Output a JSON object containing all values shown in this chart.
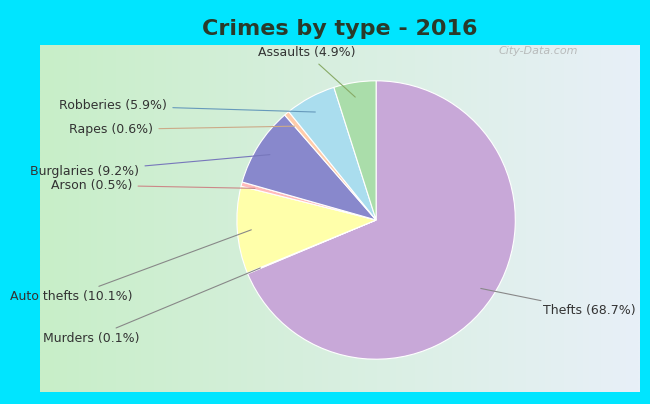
{
  "title": "Crimes by type - 2016",
  "labels": [
    "Thefts",
    "Murders",
    "Auto thefts",
    "Arson",
    "Burglaries",
    "Rapes",
    "Robberies",
    "Assaults"
  ],
  "values": [
    68.7,
    0.1,
    10.1,
    0.5,
    9.2,
    0.6,
    5.9,
    4.9
  ],
  "colors": [
    "#c8a8d8",
    "#d4c8b8",
    "#ffffaa",
    "#ffbbbb",
    "#8888cc",
    "#ffccaa",
    "#aaddee",
    "#aaddaa"
  ],
  "pct_labels": [
    "Thefts (68.7%)",
    "Murders (0.1%)",
    "Auto thefts (10.1%)",
    "Arson (0.5%)",
    "Burglaries (9.2%)",
    "Rapes (0.6%)",
    "Robberies (5.9%)",
    "Assaults (4.9%)"
  ],
  "background_top": "#00e5ff",
  "background_main_left": "#c8eec8",
  "background_main_right": "#e8f0f8",
  "title_fontsize": 16,
  "label_fontsize": 9,
  "watermark": "City-Data.com",
  "cyan_bar_height": 0.07
}
